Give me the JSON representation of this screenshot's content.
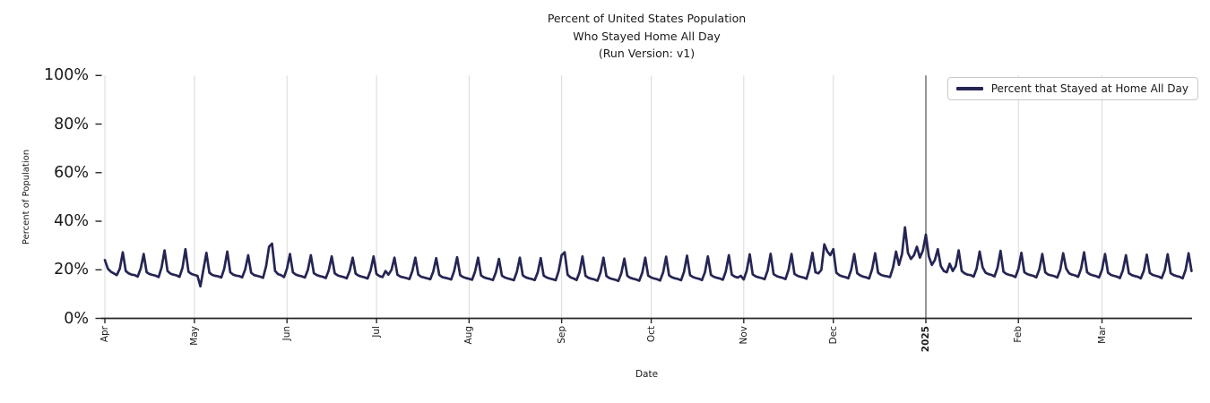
{
  "title": {
    "line1": "Percent of United States Population",
    "line2": "Who Stayed Home All Day",
    "line3": "(Run Version: v1)"
  },
  "axes": {
    "x_label": "Date",
    "y_label": "Percent of Population",
    "y_ticks": [
      {
        "label": "0%",
        "value": 0
      },
      {
        "label": "20%",
        "value": 20
      },
      {
        "label": "40%",
        "value": 40
      },
      {
        "label": "60%",
        "value": 60
      },
      {
        "label": "80%",
        "value": 80
      },
      {
        "label": "100%",
        "value": 100
      }
    ],
    "x_ticks": [
      {
        "label": "Apr",
        "day": 0,
        "bold": false
      },
      {
        "label": "May",
        "day": 30,
        "bold": false
      },
      {
        "label": "Jun",
        "day": 61,
        "bold": false
      },
      {
        "label": "Jul",
        "day": 91,
        "bold": false
      },
      {
        "label": "Aug",
        "day": 122,
        "bold": false
      },
      {
        "label": "Sep",
        "day": 153,
        "bold": false
      },
      {
        "label": "Oct",
        "day": 183,
        "bold": false
      },
      {
        "label": "Nov",
        "day": 214,
        "bold": false
      },
      {
        "label": "Dec",
        "day": 244,
        "bold": false
      },
      {
        "label": "2025",
        "day": 275,
        "bold": true
      },
      {
        "label": "Feb",
        "day": 306,
        "bold": false
      },
      {
        "label": "Mar",
        "day": 334,
        "bold": false
      }
    ]
  },
  "legend": {
    "label": "Percent that Stayed at Home All Day",
    "position": "upper right"
  },
  "colors": {
    "line": "#252554",
    "grid": "#d9d9d9",
    "year_line": "#414141",
    "axis": "#262626",
    "text": "#1a1a1a",
    "legend_border": "#c9c9c9"
  },
  "chart_data": {
    "type": "line",
    "title": "Percent of United States Population Who Stayed Home All Day (Run Version: v1)",
    "xlabel": "Date",
    "ylabel": "Percent of Population",
    "ylim": [
      0,
      100
    ],
    "grid": "vertical-only",
    "legend_position": "upper right",
    "x_start_date": "2024-04-01",
    "x_end_date": "2025-03-31",
    "frequency": "daily",
    "annotations": [
      {
        "type": "vline",
        "date": "2025-01-01",
        "day": 275
      }
    ],
    "series": [
      {
        "name": "Percent that Stayed at Home All Day",
        "unit": "percent",
        "values": [
          24.0,
          20.5,
          19.2,
          18.5,
          17.8,
          20.5,
          27.2,
          19.5,
          18.5,
          18.0,
          17.8,
          17.2,
          20.5,
          26.5,
          19.0,
          18.2,
          17.9,
          17.6,
          17.0,
          21.0,
          28.0,
          19.5,
          18.4,
          18.0,
          17.7,
          17.1,
          20.8,
          28.5,
          19.2,
          18.3,
          17.9,
          17.5,
          13.2,
          20.0,
          27.0,
          18.8,
          17.9,
          17.5,
          17.3,
          16.8,
          20.5,
          27.5,
          19.0,
          18.0,
          17.6,
          17.4,
          16.9,
          20.2,
          26.0,
          18.8,
          17.8,
          17.5,
          17.2,
          16.7,
          21.5,
          29.5,
          30.8,
          19.5,
          18.2,
          17.8,
          17.0,
          20.5,
          26.5,
          18.9,
          18.0,
          17.6,
          17.3,
          16.8,
          20.0,
          26.0,
          18.6,
          17.8,
          17.4,
          17.1,
          16.6,
          19.8,
          25.5,
          18.5,
          17.7,
          17.3,
          17.0,
          16.5,
          19.5,
          25.0,
          18.4,
          17.6,
          17.2,
          16.9,
          16.4,
          19.8,
          25.5,
          18.2,
          17.4,
          17.0,
          19.5,
          18.0,
          20.0,
          25.0,
          18.0,
          17.2,
          16.9,
          16.6,
          16.2,
          19.5,
          25.0,
          18.0,
          17.1,
          16.8,
          16.5,
          16.1,
          19.3,
          24.8,
          17.9,
          17.0,
          16.7,
          16.4,
          16.0,
          19.5,
          25.2,
          17.8,
          17.0,
          16.6,
          16.3,
          15.9,
          19.2,
          25.0,
          17.7,
          16.9,
          16.5,
          16.2,
          15.8,
          19.0,
          24.5,
          17.6,
          16.8,
          16.4,
          16.1,
          15.7,
          19.2,
          25.0,
          17.7,
          16.9,
          16.5,
          16.2,
          15.8,
          19.0,
          24.8,
          17.6,
          16.8,
          16.4,
          16.1,
          15.7,
          19.5,
          26.0,
          27.2,
          18.0,
          16.9,
          16.4,
          15.8,
          19.0,
          25.5,
          17.5,
          16.7,
          16.3,
          16.0,
          15.5,
          18.8,
          25.0,
          17.4,
          16.6,
          16.2,
          15.9,
          15.4,
          18.6,
          24.6,
          17.5,
          16.7,
          16.3,
          16.0,
          15.5,
          18.8,
          25.0,
          17.6,
          16.8,
          16.4,
          16.1,
          15.6,
          19.0,
          25.4,
          17.7,
          16.9,
          16.5,
          16.2,
          15.7,
          19.2,
          25.8,
          17.8,
          17.0,
          16.6,
          16.3,
          15.8,
          19.0,
          25.5,
          17.9,
          17.1,
          16.7,
          16.4,
          15.9,
          19.4,
          26.0,
          18.0,
          17.2,
          16.8,
          17.5,
          16.0,
          19.6,
          26.4,
          18.1,
          17.3,
          16.9,
          16.6,
          16.1,
          19.8,
          26.6,
          18.2,
          17.4,
          17.0,
          16.7,
          16.2,
          20.0,
          26.5,
          18.3,
          17.5,
          17.1,
          16.8,
          16.3,
          20.5,
          27.0,
          19.0,
          18.5,
          20.0,
          30.5,
          27.5,
          26.0,
          28.5,
          18.8,
          17.8,
          17.3,
          17.0,
          16.5,
          20.0,
          26.5,
          18.6,
          17.7,
          17.2,
          16.9,
          16.4,
          20.2,
          26.8,
          18.8,
          17.9,
          17.5,
          17.3,
          17.0,
          21.0,
          27.5,
          22.0,
          26.5,
          37.5,
          27.0,
          24.5,
          26.0,
          29.5,
          25.0,
          28.0,
          34.5,
          25.5,
          22.0,
          24.0,
          28.5,
          21.5,
          19.5,
          19.0,
          22.5,
          19.5,
          21.5,
          28.0,
          19.5,
          18.5,
          18.0,
          17.8,
          17.2,
          20.5,
          27.5,
          21.0,
          18.8,
          18.2,
          17.9,
          17.3,
          20.8,
          27.8,
          19.2,
          18.3,
          17.9,
          17.6,
          17.0,
          20.5,
          27.0,
          19.0,
          18.2,
          17.8,
          17.5,
          16.9,
          20.2,
          26.5,
          18.9,
          18.0,
          17.7,
          17.4,
          16.8,
          20.0,
          26.8,
          20.5,
          18.5,
          18.0,
          17.7,
          17.1,
          20.5,
          27.2,
          19.0,
          18.1,
          17.7,
          17.4,
          16.8,
          20.0,
          26.5,
          18.8,
          17.9,
          17.5,
          17.2,
          16.6,
          19.8,
          26.0,
          18.6,
          17.8,
          17.4,
          17.1,
          16.5,
          19.6,
          26.2,
          18.7,
          17.9,
          17.5,
          17.2,
          16.6,
          19.8,
          26.4,
          18.6,
          17.8,
          17.4,
          17.1,
          16.5,
          20.0,
          26.8,
          19.5
        ]
      }
    ]
  }
}
